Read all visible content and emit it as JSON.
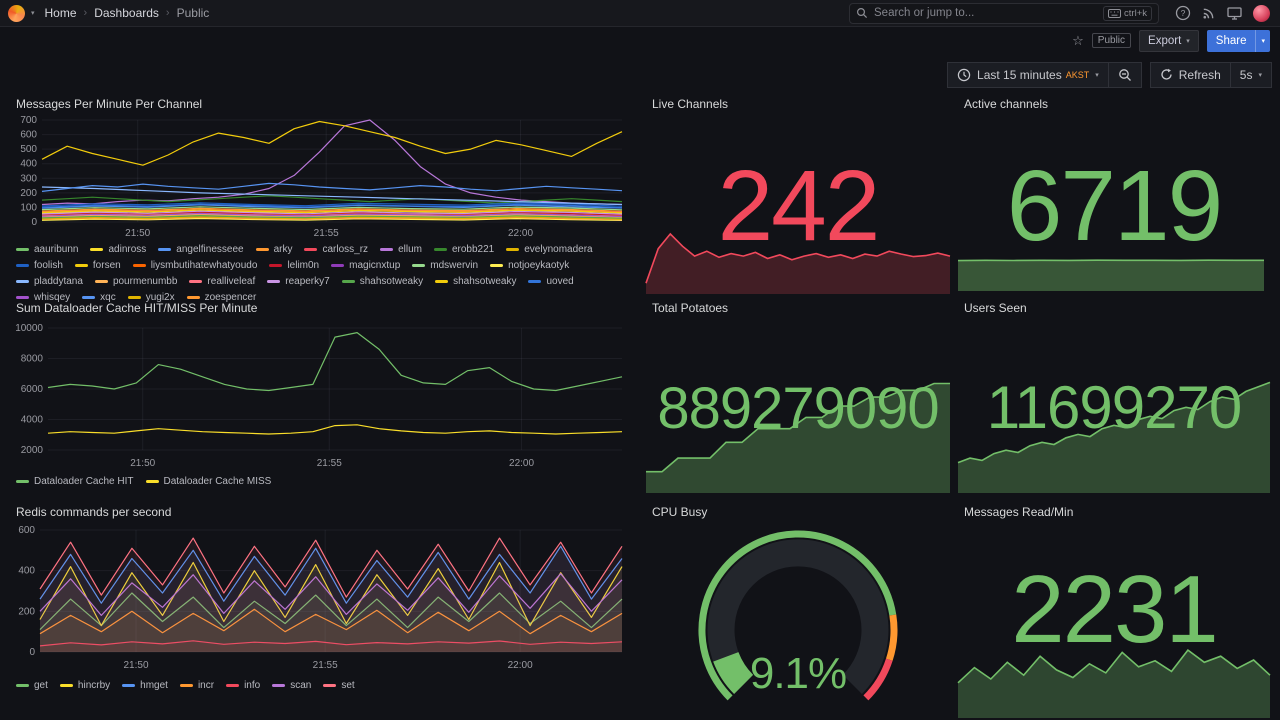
{
  "nav": {
    "breadcrumb": [
      "Home",
      "Dashboards",
      "Public"
    ],
    "search": {
      "placeholder": "Search or jump to...",
      "shortcut": "ctrl+k"
    }
  },
  "actions": {
    "visibility": "Public",
    "export": "Export",
    "share": "Share"
  },
  "toolbar": {
    "time_range": "Last 15 minutes",
    "timezone": "AKST",
    "refresh": "Refresh",
    "interval": "5s"
  },
  "icons": {
    "caret": "▾",
    "separator": "›",
    "star": "☆",
    "help": "?"
  },
  "colors": {
    "accent_blue": "#3d71d9",
    "green": "#73BF69",
    "red": "#F2495C",
    "yellow": "#FADE2A",
    "timezone_orange": "#FF9830"
  },
  "chart_data": [
    {
      "type": "timeseries",
      "title": "Messages Per Minute Per Channel",
      "ylim": [
        0,
        700
      ],
      "yticks": [
        0,
        100,
        200,
        300,
        400,
        500,
        600,
        700
      ],
      "xticks": [
        {
          "pos": 0.165,
          "label": "21:50"
        },
        {
          "pos": 0.49,
          "label": "21:55"
        },
        {
          "pos": 0.825,
          "label": "22:00"
        }
      ],
      "series": [
        {
          "name": "aauribunn",
          "color": "#73BF69",
          "values": [
            25,
            40,
            32,
            48,
            36,
            28,
            44,
            38,
            30,
            46,
            34,
            26
          ]
        },
        {
          "name": "adinross",
          "color": "#FADE2A",
          "values": [
            60,
            75,
            68,
            82,
            70,
            64,
            78,
            72,
            66,
            80,
            74,
            62
          ]
        },
        {
          "name": "angelfinesseee",
          "color": "#5794F2",
          "values": [
            95,
            110,
            102,
            118,
            106,
            98,
            114,
            108,
            100,
            116,
            104,
            96
          ]
        },
        {
          "name": "arky",
          "color": "#FF9830",
          "values": [
            45,
            58,
            50,
            64,
            54,
            46,
            60,
            52,
            48,
            62,
            56,
            44
          ]
        },
        {
          "name": "carloss_rz",
          "color": "#F2495C",
          "values": [
            70,
            85,
            76,
            92,
            80,
            72,
            88,
            78,
            74,
            90,
            82,
            68
          ]
        },
        {
          "name": "ellum",
          "color": "#B877D9",
          "values": [
            120,
            130,
            125,
            140,
            150,
            145,
            160,
            170,
            190,
            230,
            320,
            480,
            660,
            700,
            560,
            380,
            260,
            200,
            170,
            150,
            140,
            130,
            125,
            120
          ]
        },
        {
          "name": "erobb221",
          "color": "#37872D",
          "values": [
            150,
            160,
            170,
            160,
            150,
            140,
            150,
            160,
            170,
            180,
            170,
            160,
            150,
            140,
            150,
            160,
            150,
            140,
            130,
            140,
            150,
            160,
            150,
            140
          ]
        },
        {
          "name": "evelynomadera",
          "color": "#E0B400",
          "values": [
            30,
            42,
            36,
            48,
            38,
            32,
            44,
            40,
            34,
            46,
            36,
            28
          ]
        },
        {
          "name": "foolish",
          "color": "#1F60C4",
          "values": [
            110,
            125,
            118,
            132,
            120,
            112,
            128,
            122,
            116,
            130,
            124,
            108
          ]
        },
        {
          "name": "forsen",
          "color": "#F2CC0C",
          "values": [
            430,
            520,
            470,
            430,
            390,
            460,
            550,
            610,
            580,
            540,
            640,
            690,
            660,
            620,
            580,
            520,
            470,
            500,
            560,
            530,
            490,
            450,
            540,
            620
          ]
        },
        {
          "name": "liysmbutihatewhatyoudo",
          "color": "#FA6400",
          "values": [
            15,
            24,
            18,
            28,
            20,
            16,
            26,
            22,
            18,
            28,
            20,
            14
          ]
        },
        {
          "name": "lelim0n",
          "color": "#C4162A",
          "values": [
            50,
            62,
            56,
            68,
            58,
            52,
            64,
            60,
            54,
            66,
            58,
            48
          ]
        },
        {
          "name": "magicnxtup",
          "color": "#8F3BB8",
          "values": [
            22,
            32,
            26,
            36,
            28,
            24,
            34,
            30,
            26,
            36,
            28,
            20
          ]
        },
        {
          "name": "mdswervin",
          "color": "#96D98D",
          "values": [
            85,
            98,
            90,
            104,
            94,
            86,
            100,
            92,
            88,
            102,
            96,
            84
          ]
        },
        {
          "name": "notjoeykaotyk",
          "color": "#FFEE52",
          "values": [
            12,
            20,
            15,
            24,
            17,
            13,
            22,
            18,
            14,
            23,
            16,
            11
          ]
        },
        {
          "name": "pladdytana",
          "color": "#8AB8FF",
          "values": [
            240,
            230,
            215,
            200,
            190,
            180,
            170,
            160,
            150,
            140,
            130,
            120
          ]
        },
        {
          "name": "pourmenumbb",
          "color": "#FFB357",
          "values": [
            35,
            46,
            40,
            52,
            42,
            36,
            48,
            44,
            38,
            50,
            42,
            34
          ]
        },
        {
          "name": "realliveleaf",
          "color": "#FF7383",
          "values": [
            18,
            28,
            22,
            32,
            24,
            20,
            30,
            26,
            22,
            32,
            24,
            16
          ]
        },
        {
          "name": "reaperky7",
          "color": "#CA95E5",
          "values": [
            55,
            68,
            60,
            74,
            64,
            56,
            70,
            62,
            58,
            72,
            66,
            54
          ]
        },
        {
          "name": "shahsotweaky",
          "color": "#56A64B",
          "values": [
            28,
            38,
            32,
            44,
            34,
            30,
            40,
            36,
            32,
            42,
            34,
            26
          ]
        },
        {
          "name": "shahsotweaky",
          "color": "#F2CC0C",
          "values": [
            65,
            78,
            70,
            84,
            74,
            66,
            80,
            72,
            68,
            82,
            76,
            64
          ]
        },
        {
          "name": "uoved",
          "color": "#3274D9",
          "values": [
            100,
            115,
            108,
            122,
            112,
            102,
            118,
            110,
            106,
            120,
            114,
            98
          ]
        },
        {
          "name": "whisqey",
          "color": "#A352CC",
          "values": [
            40,
            52,
            46,
            58,
            48,
            42,
            54,
            50,
            44,
            56,
            48,
            38
          ]
        },
        {
          "name": "xqc",
          "color": "#5794F2",
          "values": [
            210,
            230,
            250,
            240,
            260,
            245,
            235,
            225,
            245,
            265,
            255,
            240,
            230,
            220,
            235,
            250,
            240,
            225,
            215,
            230,
            245,
            235,
            225,
            215
          ]
        },
        {
          "name": "yugi2x",
          "color": "#E0B400",
          "values": [
            20,
            30,
            24,
            34,
            26,
            22,
            32,
            28,
            24,
            34,
            26,
            18
          ]
        },
        {
          "name": "zoespencer",
          "color": "#FF9830",
          "values": [
            75,
            88,
            80,
            94,
            84,
            76,
            90,
            82,
            78,
            92,
            86,
            74
          ]
        }
      ]
    },
    {
      "type": "sparkline",
      "title": "Live Channels",
      "display_value": "242",
      "color": "#F2495C",
      "fill_opacity": 0.22,
      "ylim": [
        0,
        260
      ],
      "values": [
        40,
        180,
        240,
        190,
        150,
        170,
        145,
        160,
        150,
        165,
        140,
        155,
        135,
        150,
        160,
        145,
        155,
        140,
        158,
        150,
        170,
        158,
        148,
        152,
        162,
        150
      ]
    },
    {
      "type": "sparkline",
      "title": "Active channels",
      "display_value": "6719",
      "color": "#73BF69",
      "fill_opacity": 0.4,
      "ylim": [
        0,
        7000
      ],
      "values": [
        6650,
        6700,
        6670,
        6710,
        6690,
        6719,
        6700,
        6710,
        6695,
        6719,
        6705,
        6715
      ]
    },
    {
      "type": "timeseries",
      "title": "Sum Dataloader Cache HIT/MISS Per Minute",
      "ylim": [
        2000,
        10000
      ],
      "yticks": [
        2000,
        4000,
        6000,
        8000,
        10000
      ],
      "xticks": [
        {
          "pos": 0.165,
          "label": "21:50"
        },
        {
          "pos": 0.49,
          "label": "21:55"
        },
        {
          "pos": 0.825,
          "label": "22:00"
        }
      ],
      "series": [
        {
          "name": "Dataloader Cache HIT",
          "color": "#73BF69",
          "values": [
            6100,
            6300,
            6200,
            6000,
            6400,
            7600,
            7300,
            6800,
            6300,
            6000,
            5900,
            6100,
            6300,
            9400,
            9700,
            8600,
            6900,
            6400,
            6300,
            7200,
            7400,
            6500,
            6000,
            5900,
            6200,
            6500,
            6800
          ]
        },
        {
          "name": "Dataloader Cache MISS",
          "color": "#FADE2A",
          "values": [
            3100,
            3200,
            3150,
            3100,
            3250,
            3400,
            3300,
            3200,
            3150,
            3100,
            3050,
            3100,
            3200,
            3600,
            3650,
            3400,
            3250,
            3150,
            3100,
            3200,
            3250,
            3150,
            3100,
            3050,
            3100,
            3150,
            3200
          ]
        }
      ]
    },
    {
      "type": "sparkline",
      "title": "Total Potatoes",
      "display_value": "889279090",
      "color": "#73BF69",
      "fill_opacity": 0.32,
      "ylim": [
        0,
        100
      ],
      "values": [
        18,
        18,
        30,
        30,
        30,
        44,
        44,
        56,
        56,
        56,
        66,
        66,
        76,
        76,
        84,
        84,
        90,
        90,
        96,
        96
      ]
    },
    {
      "type": "sparkline",
      "title": "Users Seen",
      "display_value": "11699270",
      "color": "#73BF69",
      "fill_opacity": 0.32,
      "ylim": [
        0,
        100
      ],
      "values": [
        26,
        30,
        28,
        34,
        37,
        35,
        41,
        44,
        42,
        48,
        51,
        49,
        56,
        59,
        57,
        64,
        67,
        65,
        72,
        75,
        73,
        80,
        84,
        82,
        89,
        93,
        97
      ]
    },
    {
      "type": "timeseries",
      "title": "Redis commands per second",
      "ylim": [
        0,
        600
      ],
      "yticks": [
        0,
        200,
        400,
        600
      ],
      "fill_opacity": 0.07,
      "xticks": [
        {
          "pos": 0.165,
          "label": "21:50"
        },
        {
          "pos": 0.49,
          "label": "21:55"
        },
        {
          "pos": 0.825,
          "label": "22:00"
        }
      ],
      "series": [
        {
          "name": "get",
          "color": "#73BF69",
          "values": [
            110,
            260,
            130,
            290,
            150,
            270,
            120,
            250,
            140,
            280,
            130,
            260,
            120,
            270,
            150,
            290,
            140,
            250,
            120,
            260
          ]
        },
        {
          "name": "hincrby",
          "color": "#FADE2A",
          "values": [
            160,
            420,
            130,
            390,
            180,
            440,
            150,
            400,
            170,
            430,
            140,
            380,
            180,
            410,
            160,
            440,
            130,
            390,
            170,
            420
          ]
        },
        {
          "name": "hmget",
          "color": "#5794F2",
          "values": [
            260,
            480,
            240,
            460,
            290,
            500,
            250,
            470,
            280,
            510,
            240,
            450,
            270,
            490,
            260,
            480,
            290,
            520,
            260,
            460
          ]
        },
        {
          "name": "incr",
          "color": "#FF9830",
          "values": [
            90,
            180,
            100,
            200,
            95,
            190,
            105,
            210,
            100,
            185,
            110,
            205,
            95,
            195,
            105,
            200,
            90,
            180,
            100,
            190
          ]
        },
        {
          "name": "info",
          "color": "#F2495C",
          "values": [
            30,
            45,
            35,
            50,
            40,
            55,
            38,
            48,
            42,
            52,
            36,
            46,
            40,
            50,
            44,
            54,
            38,
            48,
            42,
            50
          ]
        },
        {
          "name": "scan",
          "color": "#B877D9",
          "values": [
            200,
            360,
            180,
            340,
            220,
            380,
            190,
            350,
            210,
            370,
            185,
            335,
            205,
            365,
            195,
            375,
            215,
            385,
            200,
            355
          ]
        },
        {
          "name": "set",
          "color": "#FF7383",
          "values": [
            310,
            540,
            280,
            510,
            330,
            560,
            290,
            520,
            320,
            550,
            270,
            500,
            310,
            530,
            300,
            560,
            330,
            540,
            290,
            520
          ]
        }
      ]
    },
    {
      "type": "gauge",
      "title": "CPU Busy",
      "value": 9.1,
      "min": 0,
      "max": 100,
      "unit": "%",
      "display_value": "9.1%",
      "color": "#73BF69",
      "thresholds": [
        {
          "to": 80,
          "color": "#73BF69"
        },
        {
          "to": 90,
          "color": "#FF9830"
        },
        {
          "to": 100,
          "color": "#F2495C"
        }
      ]
    },
    {
      "type": "sparkline",
      "title": "Messages Read/Min",
      "display_value": "2231",
      "color": "#73BF69",
      "fill_opacity": 0.3,
      "ylim": [
        0,
        100
      ],
      "values": [
        45,
        65,
        50,
        72,
        55,
        80,
        62,
        52,
        70,
        58,
        85,
        66,
        74,
        60,
        88,
        72,
        80,
        64,
        75,
        55
      ]
    }
  ]
}
